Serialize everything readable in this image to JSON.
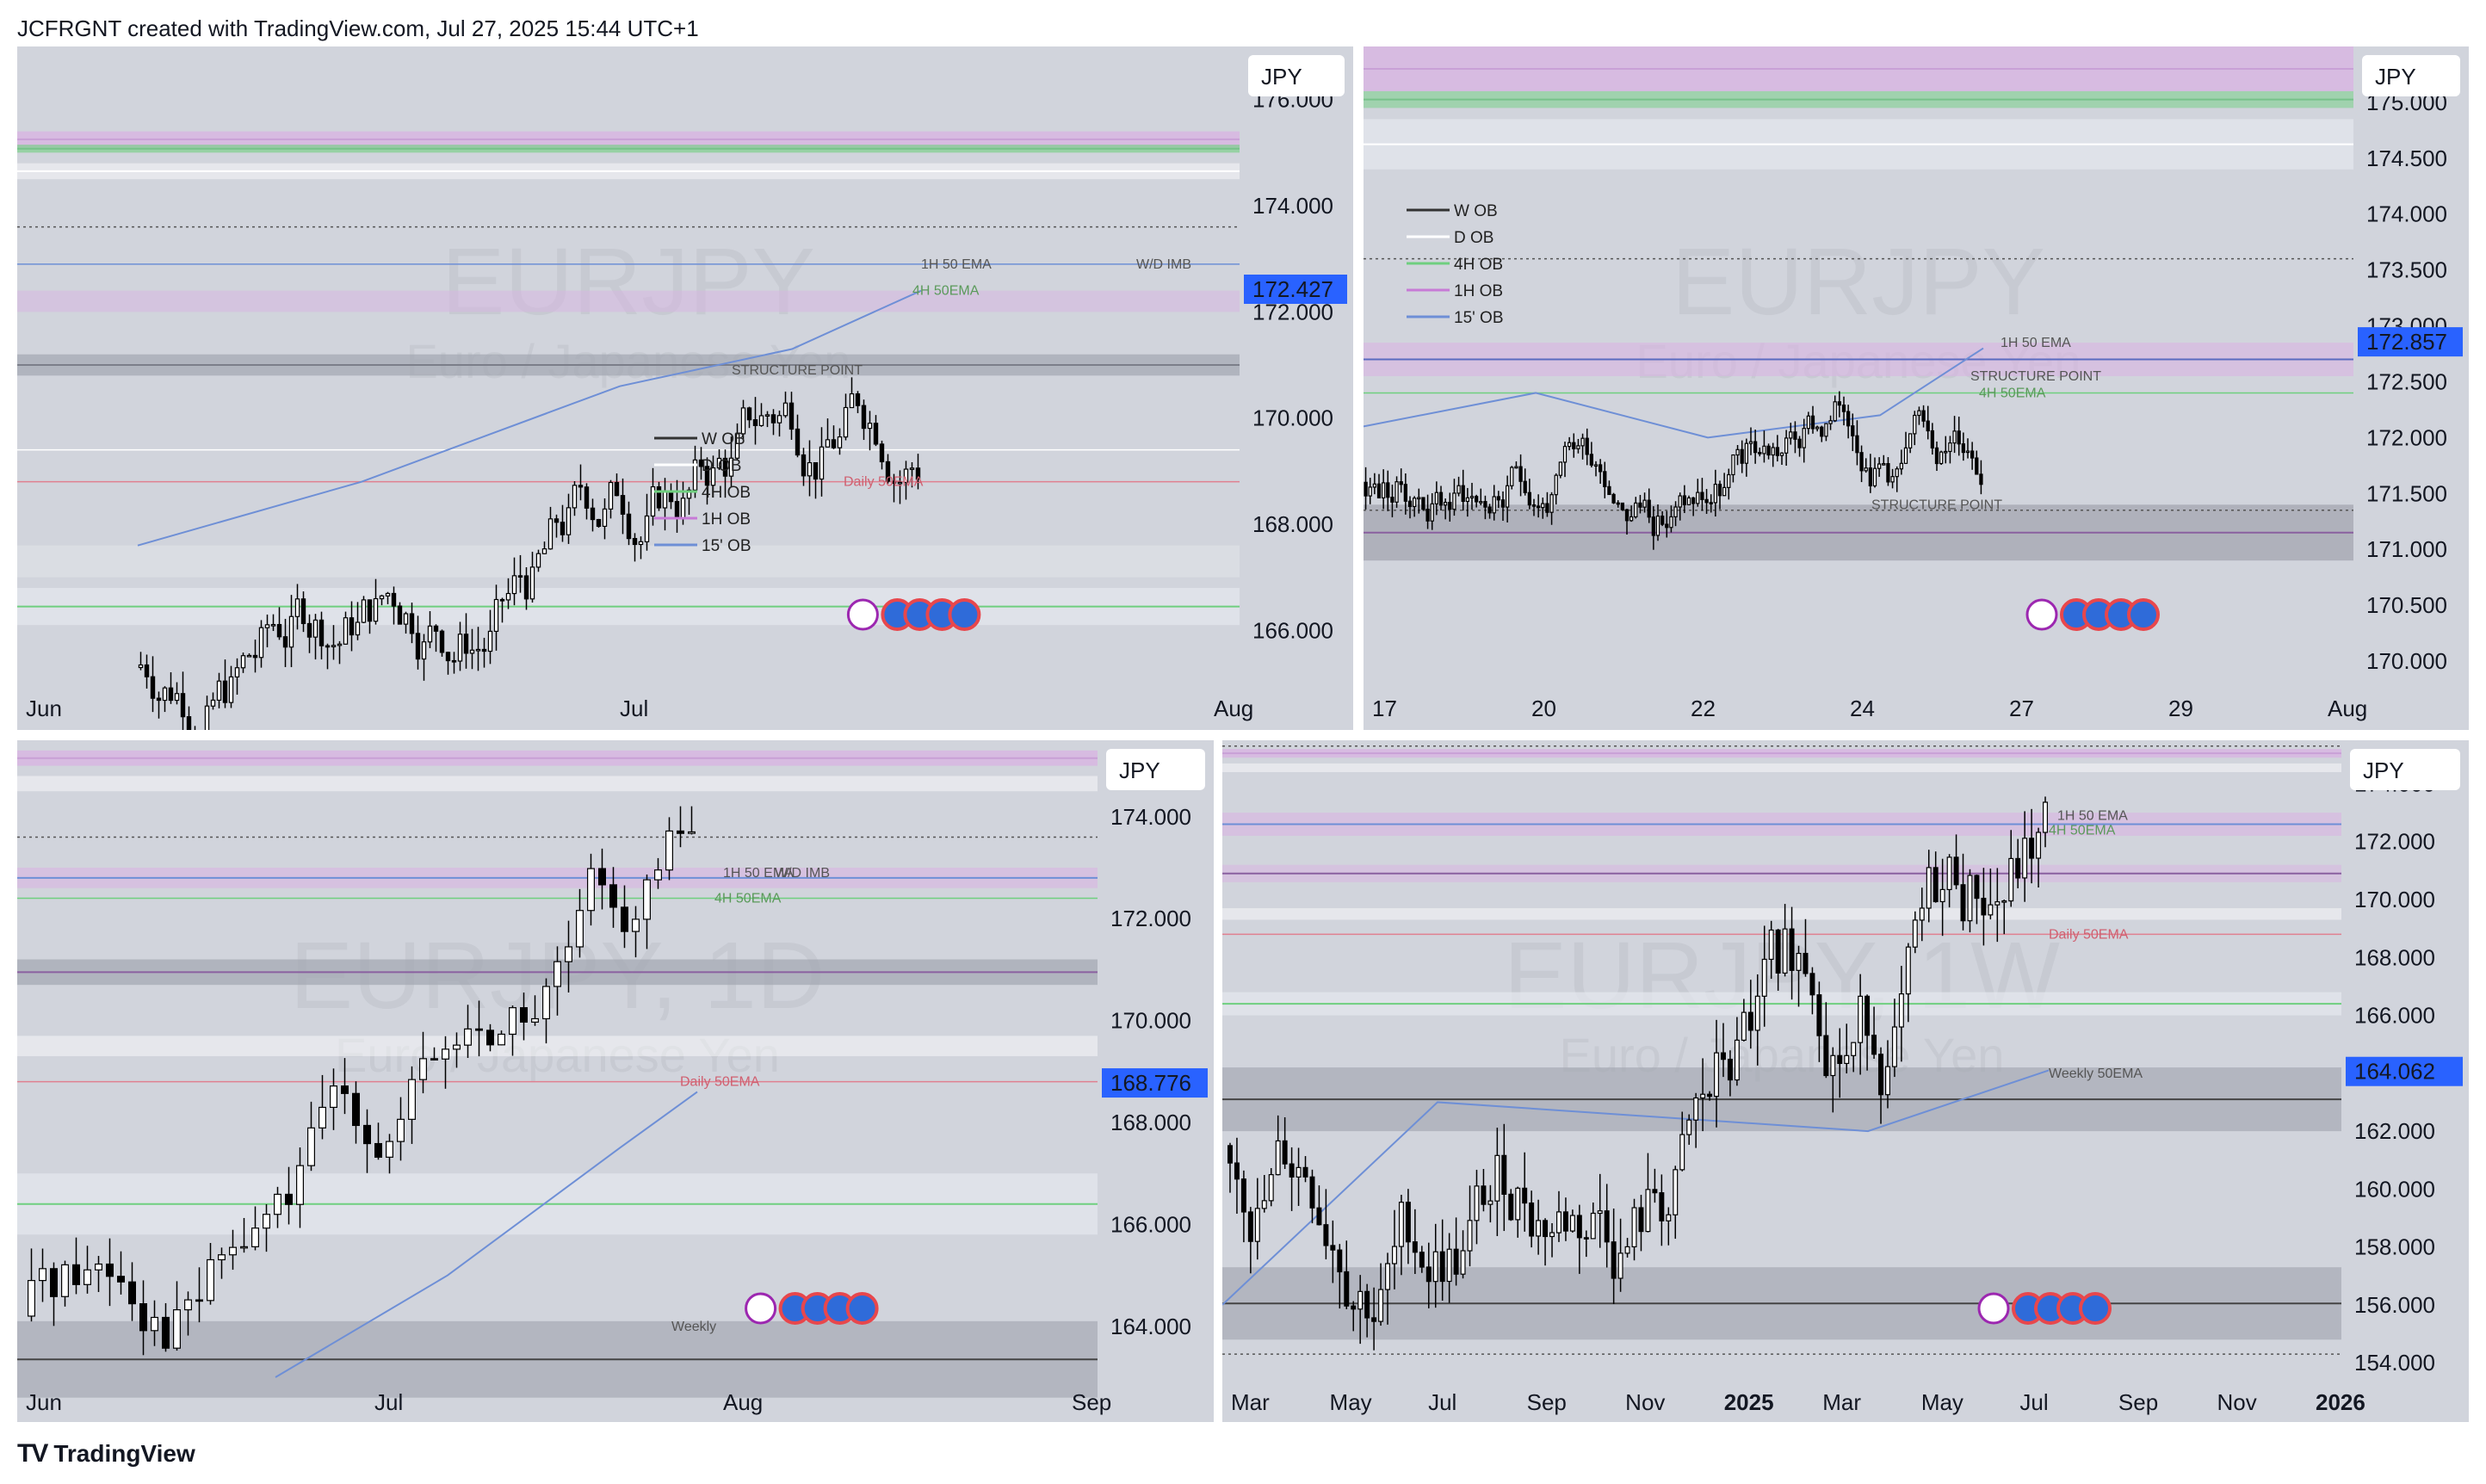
{
  "header": {
    "text": "JCFRGNT created with TradingView.com, Jul 27, 2025 15:44 UTC+1"
  },
  "footer": {
    "logo": "TV",
    "brand": "TradingView"
  },
  "colors": {
    "bg": "#d1d4dc",
    "price_tag": "#2962ff",
    "wob": "#a3a6b0",
    "hob": "#d8b4e2",
    "h4": "#6fcf7f",
    "ema": "#6e8fd6"
  },
  "chart_data": [
    {
      "type": "candlestick",
      "panel": "top-left",
      "symbol_watermark": "EURJPY",
      "subtitle_watermark": "Euro / Japanese Yen",
      "currency": "JPY",
      "last_price": "172.427",
      "ylim": [
        165,
        177
      ],
      "y_ticks": [
        "176.000",
        "174.000",
        "172.000",
        "170.000",
        "168.000",
        "166.000"
      ],
      "x_ticks": [
        "Jun",
        "Jul",
        "Aug"
      ],
      "legend": [
        "W OB",
        "D OB",
        "4H OB",
        "1H OB",
        "15' OB"
      ],
      "annotations": [
        "W/D IMB",
        "1H 50 EMA",
        "4H 50EMA",
        "STRUCTURE POINT",
        "Daily 50EMA"
      ]
    },
    {
      "type": "candlestick",
      "panel": "top-right",
      "symbol_watermark": "EURJPY",
      "subtitle_watermark": "Euro / Japanese Yen",
      "currency": "JPY",
      "last_price": "172.857",
      "ylim": [
        169.8,
        175.5
      ],
      "y_ticks": [
        "175.000",
        "174.500",
        "174.000",
        "173.500",
        "173.000",
        "172.500",
        "172.000",
        "171.500",
        "171.000",
        "170.500",
        "170.000"
      ],
      "x_ticks": [
        "17",
        "20",
        "22",
        "24",
        "27",
        "29",
        "Aug"
      ],
      "legend": [
        "W OB",
        "D OB",
        "4H OB",
        "1H OB",
        "15' OB"
      ],
      "annotations": [
        "1H 50 EMA",
        "STRUCTURE POINT",
        "4H 50EMA",
        "STRUCTURE POINT"
      ]
    },
    {
      "type": "candlestick",
      "panel": "bottom-left",
      "symbol_watermark": "EURJPY, 1D",
      "subtitle_watermark": "Euro / Japanese Yen",
      "currency": "JPY",
      "last_price": "168.776",
      "ylim": [
        163,
        175.5
      ],
      "y_ticks": [
        "174.000",
        "172.000",
        "170.000",
        "168.000",
        "166.000",
        "164.000"
      ],
      "x_ticks": [
        "Jun",
        "Jul",
        "Aug",
        "Sep"
      ],
      "annotations": [
        "1H 50 EMA",
        "W/D IMB",
        "4H 50EMA",
        "Daily 50EMA",
        "Weekly"
      ]
    },
    {
      "type": "candlestick",
      "panel": "bottom-right",
      "symbol_watermark": "EURJPY, 1W",
      "subtitle_watermark": "Euro / Japanese Yen",
      "currency": "JPY",
      "last_price": "164.062",
      "ylim": [
        153.5,
        175.5
      ],
      "y_ticks": [
        "174.000",
        "172.000",
        "170.000",
        "168.000",
        "166.000",
        "164.000",
        "162.000",
        "160.000",
        "158.000",
        "156.000",
        "154.000"
      ],
      "x_ticks": [
        "Mar",
        "May",
        "Jul",
        "Sep",
        "Nov",
        "2025",
        "Mar",
        "May",
        "Jul",
        "Sep",
        "Nov",
        "2026"
      ],
      "annotations": [
        "1H 50 EMA",
        "4H 50EMA",
        "Daily 50EMA",
        "Weekly 50EMA"
      ]
    }
  ]
}
